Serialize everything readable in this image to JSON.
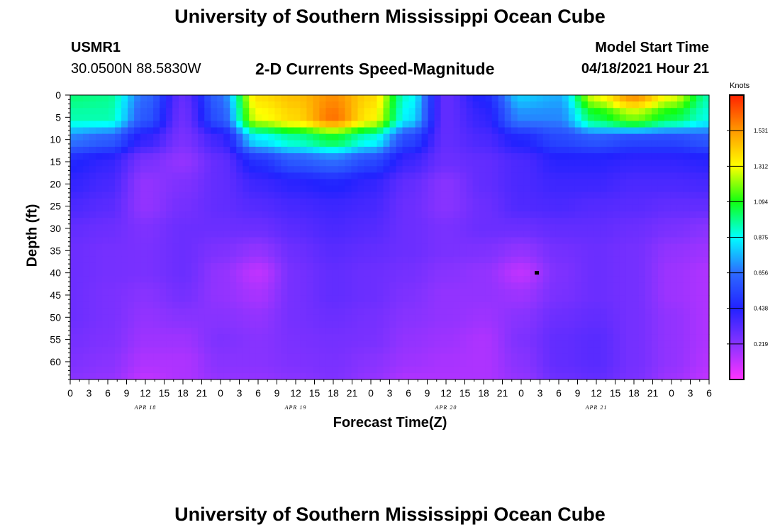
{
  "header": {
    "title": "University of Southern Mississippi Ocean Cube",
    "station": "USMR1",
    "location": "30.0500N  88.5830W",
    "subtitle": "2-D Currents Speed-Magnitude",
    "model_label": "Model Start Time",
    "model_time": "04/18/2021 Hour 21"
  },
  "footer": {
    "title": "University of Southern Mississippi Ocean Cube"
  },
  "colors": {
    "scale": [
      "#ff33ff",
      "#8833ff",
      "#2222ff",
      "#2d6bff",
      "#00ffff",
      "#11ff11",
      "#ffff00",
      "#ff9900",
      "#ff2200"
    ]
  },
  "chart_data": {
    "type": "heatmap",
    "title": "2-D Currents Speed-Magnitude",
    "xlabel": "Forecast Time(Z)",
    "ylabel": "Depth (ft)",
    "x_ticks": [
      "0",
      "3",
      "6",
      "9",
      "12",
      "15",
      "18",
      "21",
      "0",
      "3",
      "6",
      "9",
      "12",
      "15",
      "18",
      "21",
      "0",
      "3",
      "6",
      "9",
      "12",
      "15",
      "18",
      "21",
      "0",
      "3",
      "6",
      "9",
      "12",
      "15",
      "18",
      "21",
      "0",
      "3",
      "6"
    ],
    "x_range_hours": [
      0,
      102
    ],
    "date_labels": [
      {
        "label": "APR 18",
        "hour": 12
      },
      {
        "label": "APR 19",
        "hour": 36
      },
      {
        "label": "APR 20",
        "hour": 60
      },
      {
        "label": "APR 21",
        "hour": 84
      }
    ],
    "y_ticks": [
      0,
      5,
      10,
      15,
      20,
      25,
      30,
      35,
      40,
      45,
      50,
      55,
      60
    ],
    "ylim": [
      0,
      64
    ],
    "y_inverted": true,
    "colorbar": {
      "unit": "Knots",
      "ticks": [
        "1.531",
        "1.312",
        "1.094",
        "0.875",
        "0.656",
        "0.438",
        "0.219"
      ],
      "range": [
        0,
        1.75
      ]
    },
    "grid": {
      "hours": [
        0,
        6,
        12,
        18,
        24,
        30,
        36,
        42,
        48,
        54,
        60,
        66,
        72,
        78,
        84,
        90,
        96,
        102
      ],
      "depths": [
        0,
        5,
        10,
        15,
        20,
        25,
        30,
        35,
        40,
        45,
        50,
        55,
        60,
        64
      ],
      "values": [
        [
          1.0,
          0.98,
          0.65,
          0.3,
          0.65,
          1.38,
          1.45,
          1.55,
          1.4,
          0.9,
          0.3,
          0.45,
          0.8,
          0.75,
          1.3,
          1.55,
          1.3,
          0.95
        ],
        [
          0.95,
          0.95,
          0.6,
          0.28,
          0.6,
          1.3,
          1.4,
          1.6,
          1.35,
          0.85,
          0.3,
          0.4,
          0.7,
          0.7,
          1.05,
          1.2,
          1.05,
          0.9
        ],
        [
          0.68,
          0.62,
          0.4,
          0.25,
          0.38,
          0.85,
          0.95,
          1.05,
          0.9,
          0.55,
          0.3,
          0.35,
          0.45,
          0.55,
          0.6,
          0.55,
          0.55,
          0.6
        ],
        [
          0.45,
          0.4,
          0.25,
          0.2,
          0.3,
          0.48,
          0.6,
          0.65,
          0.55,
          0.38,
          0.28,
          0.3,
          0.35,
          0.42,
          0.42,
          0.4,
          0.4,
          0.42
        ],
        [
          0.4,
          0.36,
          0.2,
          0.24,
          0.3,
          0.38,
          0.42,
          0.45,
          0.4,
          0.3,
          0.22,
          0.3,
          0.35,
          0.38,
          0.38,
          0.35,
          0.35,
          0.36
        ],
        [
          0.35,
          0.32,
          0.2,
          0.26,
          0.3,
          0.33,
          0.36,
          0.38,
          0.36,
          0.28,
          0.22,
          0.28,
          0.34,
          0.35,
          0.33,
          0.32,
          0.3,
          0.3
        ],
        [
          0.3,
          0.28,
          0.24,
          0.28,
          0.28,
          0.28,
          0.32,
          0.35,
          0.33,
          0.28,
          0.25,
          0.28,
          0.28,
          0.3,
          0.3,
          0.28,
          0.25,
          0.22
        ],
        [
          0.28,
          0.26,
          0.25,
          0.28,
          0.24,
          0.2,
          0.28,
          0.32,
          0.3,
          0.28,
          0.25,
          0.24,
          0.2,
          0.26,
          0.28,
          0.26,
          0.2,
          0.18
        ],
        [
          0.28,
          0.26,
          0.25,
          0.28,
          0.2,
          0.12,
          0.26,
          0.3,
          0.28,
          0.26,
          0.22,
          0.2,
          0.12,
          0.24,
          0.28,
          0.26,
          0.18,
          0.15
        ],
        [
          0.28,
          0.25,
          0.22,
          0.26,
          0.2,
          0.16,
          0.26,
          0.3,
          0.28,
          0.24,
          0.2,
          0.2,
          0.18,
          0.25,
          0.28,
          0.26,
          0.18,
          0.15
        ],
        [
          0.28,
          0.25,
          0.2,
          0.22,
          0.22,
          0.2,
          0.26,
          0.28,
          0.26,
          0.22,
          0.2,
          0.18,
          0.22,
          0.28,
          0.3,
          0.26,
          0.2,
          0.15
        ],
        [
          0.26,
          0.24,
          0.18,
          0.18,
          0.24,
          0.22,
          0.25,
          0.26,
          0.25,
          0.2,
          0.18,
          0.15,
          0.24,
          0.3,
          0.32,
          0.26,
          0.2,
          0.15
        ],
        [
          0.24,
          0.22,
          0.15,
          0.15,
          0.22,
          0.22,
          0.24,
          0.25,
          0.22,
          0.18,
          0.16,
          0.15,
          0.22,
          0.3,
          0.32,
          0.26,
          0.2,
          0.14
        ],
        [
          0.22,
          0.2,
          0.12,
          0.15,
          0.2,
          0.2,
          0.22,
          0.24,
          0.2,
          0.15,
          0.15,
          0.15,
          0.2,
          0.28,
          0.3,
          0.25,
          0.18,
          0.12
        ]
      ],
      "marker": {
        "hour": 74.5,
        "depth": 40
      }
    }
  }
}
